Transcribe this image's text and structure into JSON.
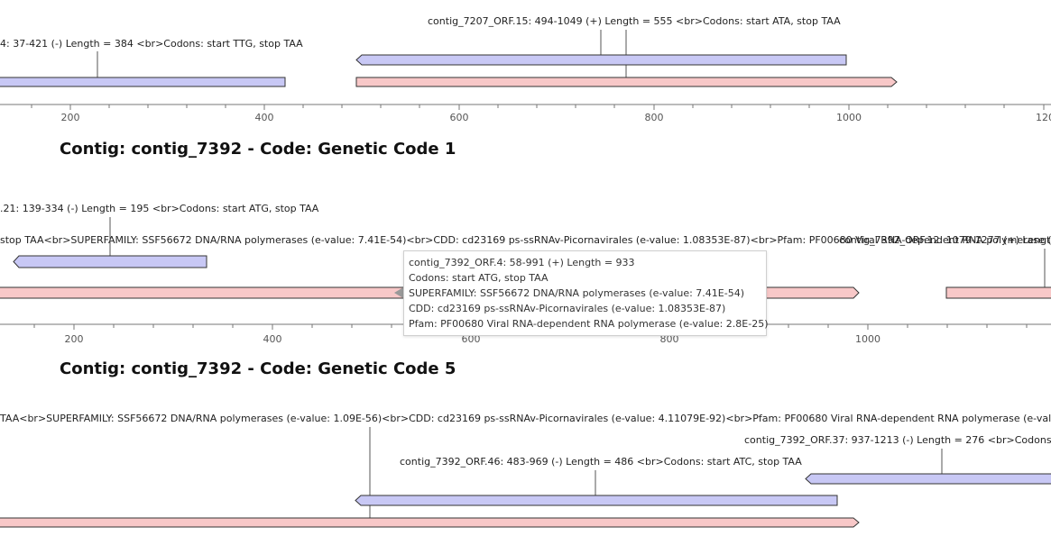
{
  "colors": {
    "minus_strand_fill": "#c8c8f5",
    "plus_strand_fill": "#f8c8c8",
    "outline": "#333333",
    "axis": "#777777"
  },
  "tracks": [
    {
      "id": "t1",
      "title": "",
      "ticks": [
        "200",
        "400",
        "600",
        "800",
        "1000",
        "1200"
      ],
      "orfs": [
        {
          "label": "4: 37-421 (-) Length = 384 <br>Codons: start TTG, stop TAA",
          "start": 37,
          "end": 421,
          "strand": "-"
        },
        {
          "label": "contig_7207_ORF.15: 494-1049 (+) Length = 555 <br>Codons: start ATA, stop TAA",
          "start": 494,
          "end": 1049,
          "strand": "+"
        },
        {
          "label": "",
          "start": 490,
          "end": 1000,
          "strand": "-"
        }
      ]
    },
    {
      "id": "t2",
      "title": "Contig: contig_7392 - Code: Genetic Code 1",
      "ticks": [
        "200",
        "400",
        "600",
        "800",
        "1000"
      ],
      "orfs": [
        {
          "label": ".21: 139-334 (-) Length = 195 <br>Codons: start ATG, stop TAA",
          "start": 139,
          "end": 334,
          "strand": "-"
        },
        {
          "label": " stop TAA<br>SUPERFAMILY: SSF56672 DNA/RNA polymerases (e-value: 7.41E-54)<br>CDD: cd23169 ps-ssRNAv-Picornavirales (e-value: 1.08353E-87)<br>Pfam: PF00680 Viral RNA-dependent RNA polymerase (e-value: 2.8E-25)",
          "start": 58,
          "end": 991,
          "strand": "+"
        },
        {
          "label": "contig_7392_ORF.12: 1079-1277 (+) Length",
          "start": 1079,
          "end": 1277,
          "strand": "+"
        }
      ],
      "tooltip": [
        "contig_7392_ORF.4: 58-991 (+) Length = 933",
        "Codons: start ATG, stop TAA",
        "SUPERFAMILY: SSF56672 DNA/RNA polymerases (e-value: 7.41E-54)",
        "CDD: cd23169 ps-ssRNAv-Picornavirales (e-value: 1.08353E-87)",
        "Pfam: PF00680 Viral RNA-dependent RNA polymerase (e-value: 2.8E-25)"
      ]
    },
    {
      "id": "t3",
      "title": "Contig: contig_7392 - Code: Genetic Code 5",
      "orfs": [
        {
          "label": "TAA<br>SUPERFAMILY: SSF56672 DNA/RNA polymerases (e-value: 1.09E-56)<br>CDD: cd23169 ps-ssRNAv-Picornavirales (e-value: 4.11079E-92)<br>Pfam: PF00680 Viral RNA-dependent RNA polymerase (e-value",
          "start": 58,
          "end": 991,
          "strand": "+"
        },
        {
          "label": "contig_7392_ORF.37: 937-1213 (-) Length = 276 <br>Codons: s",
          "start": 937,
          "end": 1213,
          "strand": "-"
        },
        {
          "label": "contig_7392_ORF.46: 483-969 (-) Length = 486 <br>Codons: start ATC, stop TAA",
          "start": 483,
          "end": 969,
          "strand": "-"
        }
      ]
    }
  ]
}
